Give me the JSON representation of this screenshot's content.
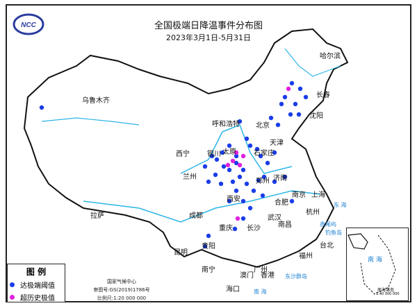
{
  "title": "全国极端日降温事件分布图",
  "subtitle": "2023年3月1日-5月31日",
  "logo_text": "NCC",
  "colors": {
    "threshold": "#1a3de8",
    "record": "#e020e0",
    "river": "#2bb5e6",
    "border": "#111111"
  },
  "legend": {
    "heading": "图 例",
    "items": [
      {
        "label": "达极端阈值",
        "color": "#1a3de8"
      },
      {
        "label": "超历史极值",
        "color": "#e020e0"
      }
    ]
  },
  "credits": [
    "国家气候中心",
    "审图号:GS(2019)1786号",
    "比例尺:1:20 000 000"
  ],
  "inset": {
    "label": "南海诸岛",
    "scale": "1:40 000 000",
    "sea": "南 海"
  },
  "cities": [
    "乌鲁木齐",
    "哈尔滨",
    "长春",
    "沈阳",
    "呼和浩特",
    "北京",
    "天津",
    "石家庄",
    "太原",
    "银川",
    "西宁",
    "兰州",
    "济南",
    "郑州",
    "西安",
    "南京",
    "上海",
    "合肥",
    "武汉",
    "杭州",
    "拉萨",
    "成都",
    "重庆",
    "长沙",
    "南昌",
    "福州",
    "贵阳",
    "昆明",
    "南宁",
    "广州",
    "澳门",
    "香港",
    "海口",
    "台北"
  ],
  "seas": [
    "东 海",
    "南 海",
    "赤尾屿",
    "钓鱼岛",
    "东沙群岛"
  ]
}
